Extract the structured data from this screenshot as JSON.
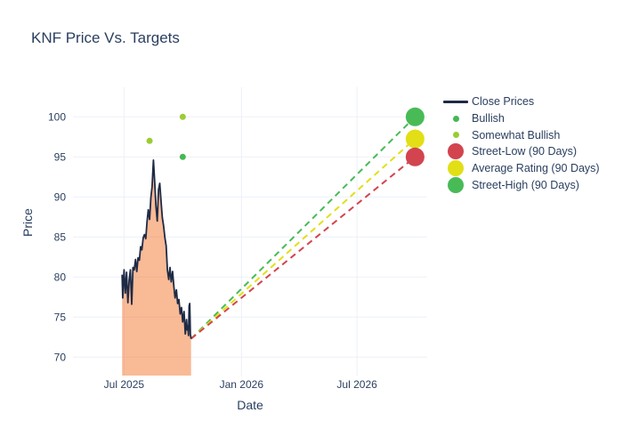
{
  "page": {
    "title": "KNF Price Vs. Targets"
  },
  "colors": {
    "text": "#2a3f5f",
    "grid": "#ebf0f8",
    "close_line": "#1e2a45",
    "area_fill": "rgba(244,130,63,0.55)",
    "bullish": "#45b854",
    "somewhat_bullish": "#9acd32",
    "street_low": "#d2444e",
    "average_rating": "#e2df16",
    "street_high": "#48bb57"
  },
  "chart_data": {
    "type": "line",
    "title": "KNF Price Vs. Targets",
    "xlabel": "Date",
    "ylabel": "Price",
    "grid": true,
    "legend_position": "right",
    "x_range": [
      "2025-04-12",
      "2026-10-19"
    ],
    "y_range": [
      67.7,
      103.7
    ],
    "x_ticks": [
      {
        "date": "2025-07-01",
        "label": "Jul 2025"
      },
      {
        "date": "2026-01-01",
        "label": "Jan 2026"
      },
      {
        "date": "2026-07-01",
        "label": "Jul 2026"
      }
    ],
    "y_ticks": [
      70,
      75,
      80,
      85,
      90,
      95,
      100
    ],
    "close_prices": {
      "name": "Close Prices",
      "color_key": "close_line",
      "fill_color_key": "area_fill",
      "points": [
        [
          "2025-06-28",
          80.3
        ],
        [
          "2025-06-29",
          77.4
        ],
        [
          "2025-07-01",
          80.9
        ],
        [
          "2025-07-03",
          78.0
        ],
        [
          "2025-07-05",
          80.6
        ],
        [
          "2025-07-07",
          76.8
        ],
        [
          "2025-07-09",
          79.6
        ],
        [
          "2025-07-11",
          80.9
        ],
        [
          "2025-07-13",
          76.6
        ],
        [
          "2025-07-15",
          81.2
        ],
        [
          "2025-07-17",
          80.9
        ],
        [
          "2025-07-19",
          82.2
        ],
        [
          "2025-07-21",
          80.7
        ],
        [
          "2025-07-23",
          82.4
        ],
        [
          "2025-07-25",
          82.1
        ],
        [
          "2025-07-27",
          83.8
        ],
        [
          "2025-07-29",
          83.4
        ],
        [
          "2025-07-31",
          84.9
        ],
        [
          "2025-08-02",
          85.3
        ],
        [
          "2025-08-04",
          84.8
        ],
        [
          "2025-08-06",
          86.9
        ],
        [
          "2025-08-08",
          88.4
        ],
        [
          "2025-08-10",
          87.2
        ],
        [
          "2025-08-12",
          89.9
        ],
        [
          "2025-08-14",
          91.3
        ],
        [
          "2025-08-16",
          94.6
        ],
        [
          "2025-08-18",
          91.9
        ],
        [
          "2025-08-20",
          88.9
        ],
        [
          "2025-08-22",
          87.0
        ],
        [
          "2025-08-24",
          90.9
        ],
        [
          "2025-08-26",
          91.7
        ],
        [
          "2025-08-28",
          89.4
        ],
        [
          "2025-08-30",
          87.4
        ],
        [
          "2025-09-01",
          86.4
        ],
        [
          "2025-09-03",
          84.9
        ],
        [
          "2025-09-05",
          83.9
        ],
        [
          "2025-09-07",
          80.9
        ],
        [
          "2025-09-09",
          79.7
        ],
        [
          "2025-09-11",
          81.2
        ],
        [
          "2025-09-13",
          79.4
        ],
        [
          "2025-09-15",
          80.7
        ],
        [
          "2025-09-17",
          78.9
        ],
        [
          "2025-09-19",
          77.4
        ],
        [
          "2025-09-21",
          78.4
        ],
        [
          "2025-09-23",
          76.7
        ],
        [
          "2025-09-25",
          77.2
        ],
        [
          "2025-09-27",
          75.4
        ],
        [
          "2025-09-29",
          76.2
        ],
        [
          "2025-10-01",
          74.4
        ],
        [
          "2025-10-03",
          75.7
        ],
        [
          "2025-10-05",
          72.9
        ],
        [
          "2025-10-07",
          74.7
        ],
        [
          "2025-10-08",
          73.4
        ],
        [
          "2025-10-09",
          73.9
        ],
        [
          "2025-10-10",
          72.7
        ],
        [
          "2025-10-11",
          76.4
        ],
        [
          "2025-10-12",
          76.7
        ],
        [
          "2025-10-13",
          72.9
        ],
        [
          "2025-10-14",
          72.3
        ]
      ]
    },
    "analyst_ratings": [
      {
        "label": "Somewhat Bullish",
        "date": "2025-08-10",
        "price": 97.0,
        "color_key": "somewhat_bullish"
      },
      {
        "label": "Somewhat Bullish",
        "date": "2025-10-01",
        "price": 100.0,
        "color_key": "somewhat_bullish"
      },
      {
        "label": "Bullish",
        "date": "2025-10-01",
        "price": 95.0,
        "color_key": "bullish"
      }
    ],
    "price_targets": {
      "date": "2026-09-30",
      "items": [
        {
          "label": "Street-High (90 Days)",
          "price": 100.0,
          "color_key": "street_high"
        },
        {
          "label": "Average Rating (90 Days)",
          "price": 97.25,
          "color_key": "average_rating"
        },
        {
          "label": "Street-Low (90 Days)",
          "price": 95.0,
          "color_key": "street_low"
        }
      ]
    },
    "legend": [
      {
        "label": "Close Prices",
        "swatch": "line",
        "color_key": "close_line"
      },
      {
        "label": "Bullish",
        "swatch": "dot",
        "color_key": "bullish"
      },
      {
        "label": "Somewhat Bullish",
        "swatch": "dot",
        "color_key": "somewhat_bullish"
      },
      {
        "label": "Street-Low (90 Days)",
        "swatch": "bigdot",
        "color_key": "street_low"
      },
      {
        "label": "Average Rating (90 Days)",
        "swatch": "bigdot",
        "color_key": "average_rating"
      },
      {
        "label": "Street-High (90 Days)",
        "swatch": "bigdot",
        "color_key": "street_high"
      }
    ]
  }
}
